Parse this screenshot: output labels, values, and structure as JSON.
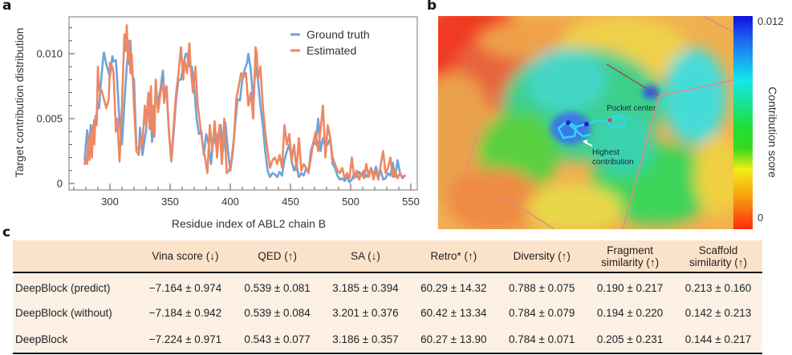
{
  "panels": {
    "a": "a",
    "b": "b",
    "c": "c"
  },
  "chart_data": {
    "type": "line",
    "title": "",
    "xlabel": "Residue index of ABL2 chain B",
    "ylabel": "Target contribution distribution",
    "xlim": [
      266,
      555
    ],
    "ylim": [
      -0.0003,
      0.0127
    ],
    "xticks": [
      300,
      350,
      400,
      450,
      500,
      550
    ],
    "xtick_labels": [
      "300",
      "350",
      "400",
      "450",
      "500",
      "550"
    ],
    "yticks": [
      0,
      0.005,
      0.01
    ],
    "ytick_labels": [
      "0",
      "0.005",
      "0.010"
    ],
    "minor_yticks": [
      0.001,
      0.002,
      0.003,
      0.004,
      0.006,
      0.007,
      0.008,
      0.009,
      0.011,
      0.012
    ],
    "grid": false,
    "legend_position": "top-right",
    "series": [
      {
        "name": "Ground truth",
        "color": "#6fa3d8",
        "x": [
          279,
          281,
          283,
          284,
          285,
          287,
          288,
          290,
          291,
          292,
          294,
          295,
          297,
          300,
          302,
          303,
          305,
          306,
          308,
          310,
          312,
          314,
          315,
          316,
          317,
          318,
          320,
          322,
          324,
          325,
          327,
          329,
          330,
          332,
          334,
          335,
          337,
          338,
          340,
          342,
          344,
          345,
          347,
          349,
          351,
          353,
          355,
          357,
          359,
          361,
          363,
          364,
          366,
          368,
          370,
          372,
          374,
          376,
          378,
          380,
          382,
          384,
          386,
          388,
          390,
          392,
          394,
          396,
          398,
          400,
          402,
          404,
          406,
          408,
          410,
          412,
          414,
          415,
          417,
          419,
          421,
          423,
          425,
          427,
          429,
          431,
          433,
          435,
          437,
          439,
          441,
          443,
          445,
          447,
          449,
          451,
          453,
          455,
          457,
          459,
          461,
          463,
          465,
          467,
          469,
          471,
          473,
          475,
          477,
          479,
          481,
          483,
          485,
          487,
          489,
          491,
          493,
          495,
          497,
          499,
          501,
          503,
          505,
          507,
          509,
          511,
          513,
          515,
          517,
          519,
          521,
          523,
          525,
          527,
          529,
          531,
          533,
          535,
          537,
          539,
          541,
          543,
          545
        ],
        "y": [
          0.0018,
          0.0041,
          0.003,
          0.0045,
          0.0028,
          0.0049,
          0.0047,
          0.0062,
          0.0058,
          0.0072,
          0.0093,
          0.0101,
          0.0092,
          0.0082,
          0.0098,
          0.0094,
          0.0095,
          0.008,
          0.0046,
          0.003,
          0.0062,
          0.009,
          0.01,
          0.0092,
          0.011,
          0.0085,
          0.008,
          0.0028,
          0.0026,
          0.0043,
          0.0022,
          0.0035,
          0.004,
          0.0066,
          0.005,
          0.0032,
          0.0056,
          0.007,
          0.0063,
          0.0073,
          0.0087,
          0.0072,
          0.0074,
          0.004,
          0.0017,
          0.004,
          0.0065,
          0.008,
          0.008,
          0.0092,
          0.01,
          0.01,
          0.009,
          0.009,
          0.0075,
          0.005,
          0.0038,
          0.004,
          0.0022,
          0.0038,
          0.003,
          0.0015,
          0.0036,
          0.003,
          0.0039,
          0.0045,
          0.0025,
          0.0047,
          0.0025,
          0.001,
          0.0023,
          0.0045,
          0.0065,
          0.0064,
          0.008,
          0.0088,
          0.0093,
          0.01,
          0.0088,
          0.0065,
          0.009,
          0.008,
          0.006,
          0.0045,
          0.0025,
          0.001,
          0.0005,
          0.0008,
          0.0007,
          0.0005,
          0.0009,
          0.0006,
          0.0018,
          0.0025,
          0.003,
          0.0017,
          0.001,
          0.0015,
          0.0005,
          0.0008,
          0.0006,
          0.0012,
          0.001,
          0.0025,
          0.0032,
          0.003,
          0.005,
          0.0025,
          0.0035,
          0.0028,
          0.003,
          0.0035,
          0.0015,
          0.0012,
          0.0006,
          0.0003,
          0.0004,
          0.0002,
          0.0005,
          0.0001,
          0.0003,
          0.0008,
          0.0005,
          0.0009,
          0.0006,
          0.001,
          0.0005,
          0.0008,
          0.0012,
          0.0006,
          0.0013,
          0.0005,
          0.001,
          0.0003,
          0.0004,
          0.0008,
          0.0006,
          0.0016,
          0.0005,
          0.0018,
          0.0008,
          0.0004,
          0.0006
        ]
      },
      {
        "name": "Estimated",
        "color": "#ee8764",
        "x": [
          279,
          280,
          281,
          282,
          283,
          284,
          285,
          286,
          287,
          288,
          289,
          290,
          291,
          292,
          293,
          295,
          297,
          299,
          300,
          302,
          303,
          305,
          306,
          308,
          310,
          312,
          313,
          314,
          315,
          316,
          317,
          318,
          319,
          320,
          322,
          324,
          325,
          327,
          329,
          330,
          332,
          333,
          334,
          335,
          336,
          337,
          338,
          340,
          342,
          344,
          345,
          347,
          349,
          351,
          353,
          355,
          357,
          359,
          361,
          362,
          364,
          366,
          367,
          369,
          371,
          373,
          375,
          377,
          379,
          381,
          383,
          385,
          387,
          389,
          391,
          393,
          395,
          397,
          399,
          401,
          403,
          405,
          407,
          409,
          411,
          413,
          415,
          417,
          419,
          421,
          422,
          423,
          425,
          427,
          429,
          431,
          433,
          435,
          437,
          439,
          441,
          443,
          445,
          447,
          449,
          451,
          453,
          455,
          457,
          459,
          461,
          463,
          465,
          467,
          469,
          471,
          473,
          475,
          477,
          479,
          481,
          483,
          485,
          487,
          489,
          491,
          493,
          495,
          497,
          499,
          501,
          503,
          505,
          507,
          509,
          511,
          513,
          515,
          517,
          519,
          521,
          523,
          525,
          527,
          529,
          531,
          533,
          535,
          537,
          539,
          541,
          543,
          545
        ],
        "y": [
          0.0015,
          0.002,
          0.0015,
          0.0035,
          0.0018,
          0.004,
          0.002,
          0.0045,
          0.003,
          0.0052,
          0.0045,
          0.009,
          0.0072,
          0.007,
          0.0072,
          0.0065,
          0.0058,
          0.0065,
          0.0093,
          0.009,
          0.0085,
          0.004,
          0.005,
          0.0017,
          0.006,
          0.0115,
          0.0102,
          0.0122,
          0.0095,
          0.011,
          0.0085,
          0.01,
          0.0082,
          0.006,
          0.0025,
          0.0022,
          0.0035,
          0.003,
          0.006,
          0.0045,
          0.007,
          0.0042,
          0.0075,
          0.004,
          0.006,
          0.0036,
          0.008,
          0.0055,
          0.007,
          0.0078,
          0.0062,
          0.0075,
          0.004,
          0.0018,
          0.0045,
          0.007,
          0.0085,
          0.0105,
          0.008,
          0.0095,
          0.0085,
          0.0108,
          0.009,
          0.007,
          0.009,
          0.006,
          0.0045,
          0.003,
          0.002,
          0.0008,
          0.0045,
          0.0025,
          0.0048,
          0.002,
          0.0045,
          0.0015,
          0.005,
          0.0008,
          0.001,
          0.0018,
          0.0035,
          0.0065,
          0.0075,
          0.0085,
          0.0082,
          0.0085,
          0.006,
          0.007,
          0.005,
          0.0105,
          0.01,
          0.008,
          0.009,
          0.006,
          0.004,
          0.0025,
          0.0012,
          0.0018,
          0.002,
          0.0015,
          0.0022,
          0.0012,
          0.0045,
          0.003,
          0.0038,
          0.0018,
          0.003,
          0.001,
          0.0035,
          0.001,
          0.0015,
          0.0012,
          0.0008,
          0.002,
          0.0032,
          0.004,
          0.0025,
          0.0042,
          0.006,
          0.002,
          0.0045,
          0.0035,
          0.002,
          0.0015,
          0.001,
          0.0008,
          0.0012,
          0.0004,
          0.0008,
          0.0004,
          0.002,
          0.0004,
          0.001,
          0.0003,
          0.0008,
          0.0004,
          0.0015,
          0.0005,
          0.0012,
          0.0003,
          0.001,
          0.0003,
          0.0015,
          0.0025,
          0.0008,
          0.0012,
          0.002,
          0.0005,
          0.001,
          0.0004,
          0.0008,
          0.0005,
          0.0006
        ]
      }
    ]
  },
  "structure_panel": {
    "annotations": {
      "pocket_center": "Pocket center",
      "highest_contribution_line1": "Highest",
      "highest_contribution_line2": "contribution"
    },
    "colorbar": {
      "title": "Contribution score",
      "max_label": "0.012",
      "min_label": "0",
      "max": 0.012,
      "min": 0
    }
  },
  "table": {
    "headers": [
      "",
      "Vina score (↓)",
      "QED (↑)",
      "SA (↓)",
      "Retro* (↑)",
      "Diversity (↑)",
      "Fragment similarity (↑)",
      "Scaffold similarity (↑)"
    ],
    "header_lines": [
      [
        ""
      ],
      [
        "Vina score (↓)"
      ],
      [
        "QED (↑)"
      ],
      [
        "SA (↓)"
      ],
      [
        "Retro* (↑)"
      ],
      [
        "Diversity (↑)"
      ],
      [
        "Fragment",
        "similarity (↑)"
      ],
      [
        "Scaffold",
        "similarity (↑)"
      ]
    ],
    "rows": [
      [
        "DeepBlock (predict)",
        "−7.164 ± 0.974",
        "0.539 ± 0.081",
        "3.185 ± 0.394",
        "60.29 ± 14.32",
        "0.788 ± 0.075",
        "0.190 ± 0.217",
        "0.213 ± 0.160"
      ],
      [
        "DeepBlock (without)",
        "−7.184 ± 0.942",
        "0.539 ± 0.084",
        "3.201 ± 0.376",
        "60.42 ± 13.34",
        "0.784 ± 0.079",
        "0.194 ± 0.220",
        "0.142 ± 0.213"
      ],
      [
        "DeepBlock",
        "−7.224 ± 0.971",
        "0.543 ± 0.077",
        "3.186 ± 0.357",
        "60.27 ± 13.90",
        "0.784 ± 0.071",
        "0.205 ± 0.231",
        "0.144 ± 0.217"
      ]
    ]
  }
}
